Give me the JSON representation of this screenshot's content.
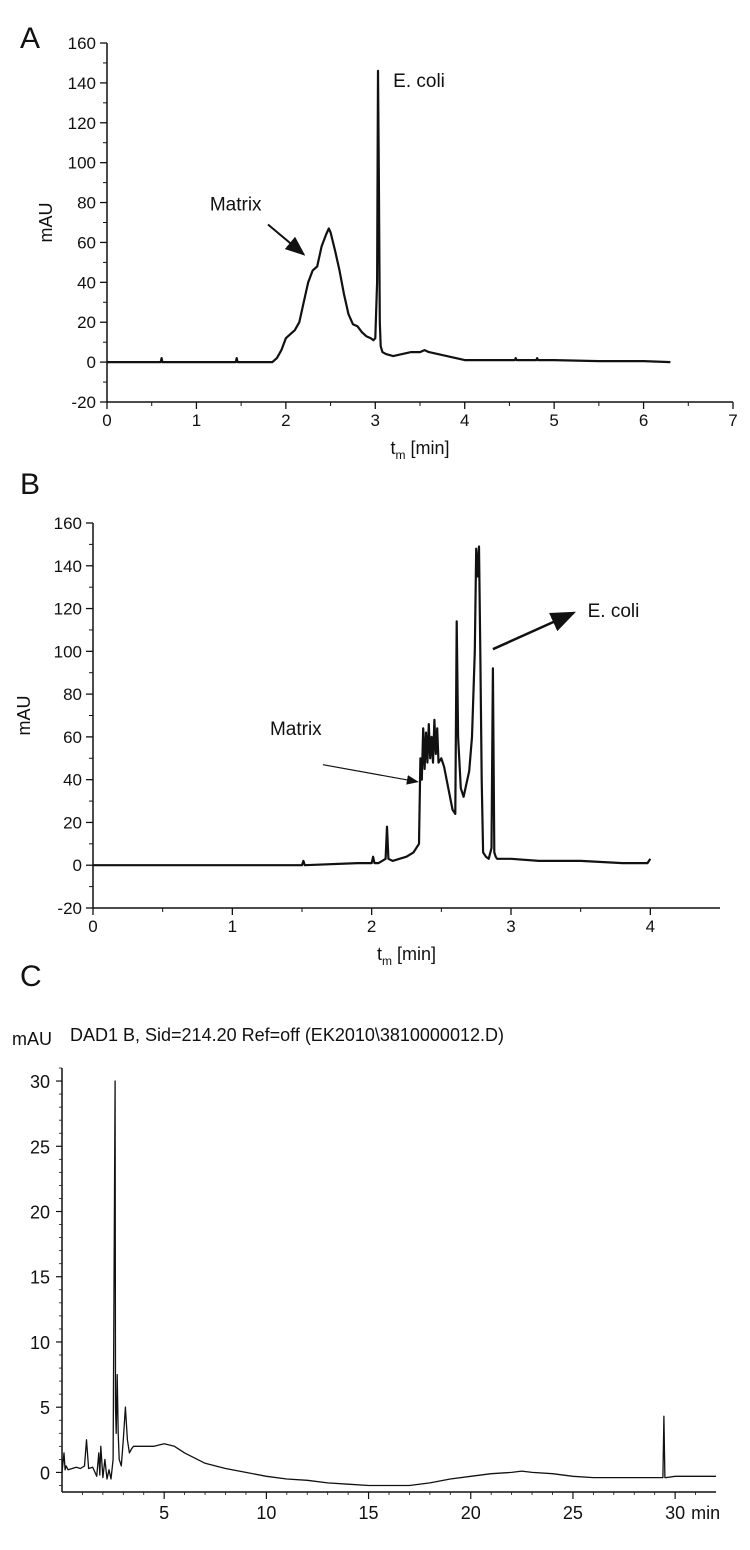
{
  "panels": {
    "a": {
      "letter": "A"
    },
    "b": {
      "letter": "B"
    },
    "c": {
      "letter": "C"
    }
  },
  "chart_data": [
    {
      "id": "A",
      "type": "line",
      "xlabel_main": "t",
      "xlabel_sub": "m",
      "xlabel_rest": " [min]",
      "ylabel": "mAU",
      "xlim": [
        0,
        7
      ],
      "ylim": [
        -20,
        160
      ],
      "xticks": [
        0,
        1,
        2,
        3,
        4,
        5,
        6,
        7
      ],
      "yticks": [
        -20,
        0,
        20,
        40,
        60,
        80,
        100,
        120,
        140,
        160
      ],
      "annotations": [
        {
          "text": "Matrix",
          "x": 1.15,
          "y": 76,
          "arrow_from": [
            1.8,
            69
          ],
          "arrow_to": [
            2.2,
            54
          ]
        },
        {
          "text": "E. coli",
          "x": 3.2,
          "y": 138
        }
      ],
      "series": [
        {
          "x": [
            0,
            0.6,
            0.61,
            0.62,
            1.0,
            1.44,
            1.45,
            1.46,
            1.85,
            1.9,
            1.95,
            2.0,
            2.05,
            2.1,
            2.15,
            2.2,
            2.25,
            2.3,
            2.35,
            2.4,
            2.45,
            2.48,
            2.5,
            2.55,
            2.6,
            2.65,
            2.7,
            2.75,
            2.8,
            2.85,
            2.9,
            2.95,
            2.98,
            3.0,
            3.02,
            3.03,
            3.04,
            3.05,
            3.06,
            3.08,
            3.12,
            3.2,
            3.3,
            3.4,
            3.5,
            3.55,
            3.6,
            3.7,
            3.8,
            3.9,
            4.0,
            4.2,
            4.5,
            4.56,
            4.57,
            4.58,
            4.8,
            4.81,
            4.82,
            5.0,
            5.5,
            6.0,
            6.3
          ],
          "y": [
            0,
            0,
            2,
            0,
            0,
            0,
            2,
            0,
            0,
            2,
            6,
            12,
            14,
            16,
            20,
            30,
            40,
            46,
            48,
            58,
            64,
            67,
            65,
            56,
            46,
            34,
            24,
            19,
            18,
            15,
            13,
            12,
            11,
            12,
            40,
            146,
            90,
            20,
            8,
            5,
            4,
            3,
            4,
            5,
            5,
            6,
            5,
            4,
            3,
            2,
            1,
            1,
            1,
            1,
            2,
            1,
            1,
            2,
            1,
            1,
            0.5,
            0.5,
            0
          ]
        }
      ]
    },
    {
      "id": "B",
      "type": "line",
      "xlabel_main": "t",
      "xlabel_sub": "m",
      "xlabel_rest": " [min]",
      "ylabel": "mAU",
      "xlim": [
        0,
        4.5
      ],
      "ylim": [
        -20,
        160
      ],
      "xticks": [
        0,
        1,
        2,
        3,
        4
      ],
      "yticks": [
        -20,
        0,
        20,
        40,
        60,
        80,
        100,
        120,
        140,
        160
      ],
      "annotations": [
        {
          "text": "Matrix",
          "x": 1.27,
          "y": 61,
          "arrow_from": [
            1.65,
            47
          ],
          "arrow_to": [
            2.33,
            39
          ]
        },
        {
          "text": "E. coli",
          "x": 3.55,
          "y": 116,
          "arrow_from": [
            2.87,
            101
          ],
          "arrow_to": [
            3.45,
            118
          ]
        }
      ],
      "series": [
        {
          "x": [
            0,
            1.0,
            1.5,
            1.51,
            1.52,
            1.9,
            2.0,
            2.01,
            2.02,
            2.05,
            2.1,
            2.11,
            2.12,
            2.15,
            2.2,
            2.25,
            2.3,
            2.34,
            2.35,
            2.36,
            2.37,
            2.38,
            2.39,
            2.4,
            2.41,
            2.42,
            2.43,
            2.44,
            2.45,
            2.46,
            2.47,
            2.48,
            2.5,
            2.52,
            2.55,
            2.58,
            2.6,
            2.61,
            2.62,
            2.64,
            2.66,
            2.68,
            2.7,
            2.72,
            2.74,
            2.75,
            2.76,
            2.77,
            2.78,
            2.79,
            2.8,
            2.82,
            2.84,
            2.86,
            2.87,
            2.88,
            2.89,
            2.9,
            2.95,
            3.0,
            3.2,
            3.5,
            3.8,
            3.98,
            4.0
          ],
          "y": [
            0,
            0,
            0,
            2,
            0,
            1,
            1,
            4,
            1,
            1,
            3,
            18,
            3,
            2,
            3,
            4,
            6,
            10,
            50,
            40,
            64,
            45,
            62,
            48,
            66,
            50,
            60,
            48,
            68,
            52,
            64,
            48,
            50,
            46,
            36,
            26,
            24,
            114,
            60,
            36,
            32,
            38,
            44,
            60,
            100,
            148,
            135,
            149,
            100,
            40,
            6,
            4,
            3,
            8,
            92,
            6,
            4,
            3,
            3,
            3,
            2,
            2,
            1,
            1,
            3
          ]
        }
      ]
    },
    {
      "id": "C",
      "type": "line",
      "title": "DAD1 B, Sid=214.20 Ref=off (EK2010\\3810000012.D)",
      "ylabel": "mAU",
      "xunit": "min",
      "xlim": [
        0,
        32
      ],
      "ylim": [
        -1.5,
        31
      ],
      "xticks": [
        5,
        10,
        15,
        20,
        25,
        30
      ],
      "yticks": [
        0,
        5,
        10,
        15,
        20,
        25,
        30
      ],
      "series": [
        {
          "x": [
            0,
            0.1,
            0.15,
            0.2,
            0.3,
            0.5,
            0.7,
            0.9,
            1.1,
            1.2,
            1.3,
            1.5,
            1.7,
            1.8,
            1.85,
            1.9,
            2.0,
            2.1,
            2.2,
            2.3,
            2.4,
            2.5,
            2.6,
            2.62,
            2.65,
            2.7,
            2.75,
            2.8,
            2.9,
            3.0,
            3.1,
            3.2,
            3.3,
            3.4,
            3.5,
            4,
            4.5,
            5,
            5.5,
            6,
            7,
            8,
            9,
            10,
            11,
            12,
            13,
            14,
            15,
            16,
            17,
            18,
            19,
            20,
            21,
            22,
            22.5,
            23,
            24,
            25,
            26,
            27,
            28,
            29,
            29.4,
            29.45,
            29.5,
            29.55,
            30,
            31,
            32
          ],
          "y": [
            0,
            1.5,
            0.2,
            0.5,
            0.2,
            0.3,
            0.4,
            0.3,
            0.5,
            2.5,
            0.3,
            0.4,
            -0.3,
            1.5,
            -0.2,
            2.0,
            -0.4,
            1.0,
            -0.5,
            0.2,
            -0.5,
            1.0,
            30,
            5,
            3,
            7.5,
            3,
            1.0,
            0.5,
            2.5,
            5,
            2.5,
            1.5,
            1.8,
            2.0,
            2.0,
            2.0,
            2.2,
            2.0,
            1.5,
            0.7,
            0.3,
            0,
            -0.3,
            -0.5,
            -0.6,
            -0.8,
            -0.9,
            -1.0,
            -1.0,
            -1.0,
            -0.8,
            -0.5,
            -0.3,
            -0.1,
            0,
            0.1,
            0,
            -0.1,
            -0.3,
            -0.4,
            -0.4,
            -0.4,
            -0.4,
            -0.4,
            4.3,
            -0.4,
            -0.4,
            -0.3,
            -0.3,
            -0.3
          ]
        }
      ]
    }
  ]
}
